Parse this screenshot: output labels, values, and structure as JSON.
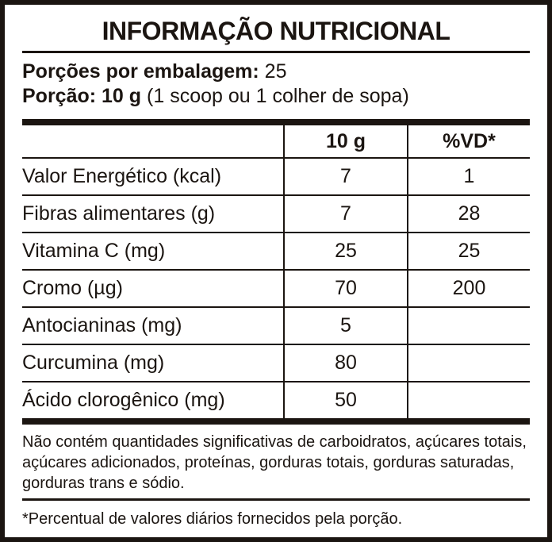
{
  "title": "INFORMAÇÃO NUTRICIONAL",
  "serving": {
    "servings_per_package_label": "Porções por embalagem:",
    "servings_per_package_value": "25",
    "portion_label": "Porção: 10 g",
    "portion_detail": "(1 scoop ou 1 colher de sopa)"
  },
  "table": {
    "columns": [
      "",
      "10 g",
      "%VD*"
    ],
    "rows": [
      {
        "nutrient": "Valor Energético (kcal)",
        "amount": "7",
        "dv": "1"
      },
      {
        "nutrient": "Fibras alimentares (g)",
        "amount": "7",
        "dv": "28"
      },
      {
        "nutrient": "Vitamina C (mg)",
        "amount": "25",
        "dv": "25"
      },
      {
        "nutrient": "Cromo (µg)",
        "amount": "70",
        "dv": "200"
      },
      {
        "nutrient": "Antocianinas (mg)",
        "amount": "5",
        "dv": ""
      },
      {
        "nutrient": "Curcumina (mg)",
        "amount": "80",
        "dv": ""
      },
      {
        "nutrient": "Ácido clorogênico (mg)",
        "amount": "50",
        "dv": ""
      }
    ]
  },
  "notes": {
    "no_significant_lines": [
      "Não contém quantidades significativas de carboidratos, açúcares totais,",
      "açúcares adicionados, proteínas, gorduras totais, gorduras saturadas,",
      "gorduras trans e sódio."
    ],
    "no_significant_full": "Não contém quantidades significativas de carboidratos, açúcares totais, açúcares adicionados, proteínas, gorduras totais, gorduras saturadas, gorduras trans e sódio.",
    "daily_values": "*Percentual de valores diários fornecidos pela porção."
  },
  "colors": {
    "ink": "#1b1511",
    "background": "#ffffff"
  }
}
